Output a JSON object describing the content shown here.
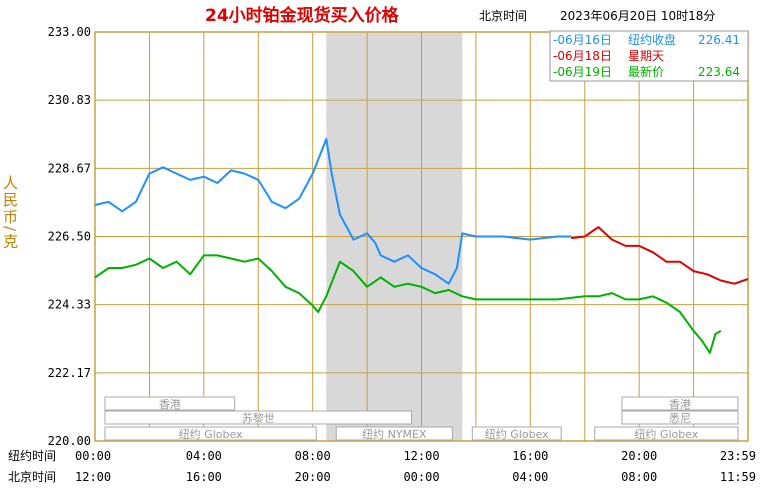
{
  "header": {
    "title": "24小时铂金现货买入价格",
    "timezone_label": "北京时间",
    "timestamp": "2023年06月20日 10时18分"
  },
  "colors": {
    "grid": "#c8a040",
    "shade": "#d8d8d8",
    "series": [
      "#1e90ff",
      "#e00000",
      "#00b000"
    ]
  },
  "chart_data": {
    "type": "line",
    "title": "24小时铂金现货买入价格",
    "ylabel": "人民币/克",
    "ylim": [
      220.0,
      233.0
    ],
    "y_ticks": [
      "233.00",
      "230.83",
      "228.67",
      "226.50",
      "224.33",
      "222.17",
      "220.00"
    ],
    "x_tick_rows": [
      {
        "label": "纽约时间",
        "ticks": [
          "00:00",
          "04:00",
          "08:00",
          "12:00",
          "16:00",
          "20:00",
          "23:59"
        ]
      },
      {
        "label": "北京时间",
        "ticks": [
          "12:00",
          "16:00",
          "20:00",
          "00:00",
          "04:00",
          "08:00",
          "11:59"
        ]
      }
    ],
    "x_ticks_hours": [
      0,
      4,
      8,
      12,
      16,
      20,
      24
    ],
    "shaded_hours": [
      8.5,
      13.5
    ],
    "markets": [
      {
        "name": "香港",
        "row": 0,
        "hours": [
          0.0,
          5.5
        ]
      },
      {
        "name": "香港",
        "row": 0,
        "hours": [
          19.0,
          24.0
        ]
      },
      {
        "name": "苏黎世",
        "row": 1,
        "hours": [
          0.0,
          12.0
        ]
      },
      {
        "name": "悉尼",
        "row": 1,
        "hours": [
          19.0,
          24.0
        ]
      },
      {
        "name": "纽约 Globex",
        "row": 2,
        "hours": [
          0.0,
          8.5
        ]
      },
      {
        "name": "纽约 NYMEX",
        "row": 2,
        "hours": [
          8.5,
          13.5
        ]
      },
      {
        "name": "纽约 Globex",
        "row": 2,
        "hours": [
          13.5,
          17.5
        ]
      },
      {
        "name": "纽约 Globex",
        "row": 2,
        "hours": [
          18.0,
          24.0
        ]
      }
    ],
    "legend": [
      {
        "date": "-06月16日",
        "label": "纽约收盘",
        "value": "226.41",
        "color": "#1e90ff"
      },
      {
        "date": "-06月18日",
        "label": "星期天",
        "value": "",
        "color": "#e00000"
      },
      {
        "date": "-06月19日",
        "label": "最新价",
        "value": "223.64",
        "color": "#00b000"
      }
    ],
    "series": [
      {
        "name": "06月16日",
        "color": "#1e90ff",
        "x": [
          0,
          0.5,
          1,
          1.5,
          2,
          2.5,
          3,
          3.5,
          4,
          4.5,
          5,
          5.5,
          6,
          6.5,
          7,
          7.5,
          8,
          8.5,
          8.7,
          9,
          9.5,
          10,
          10.3,
          10.5,
          11,
          11.5,
          12,
          12.5,
          13,
          13.3,
          13.5,
          14,
          15,
          16,
          17,
          17.5
        ],
        "y": [
          227.5,
          227.6,
          227.3,
          227.6,
          228.5,
          228.7,
          228.5,
          228.3,
          228.4,
          228.2,
          228.6,
          228.5,
          228.3,
          227.6,
          227.4,
          227.7,
          228.5,
          229.6,
          228.5,
          227.2,
          226.4,
          226.6,
          226.3,
          225.9,
          225.7,
          225.9,
          225.5,
          225.3,
          225.0,
          225.5,
          226.6,
          226.5,
          226.5,
          226.4,
          226.5,
          226.5
        ]
      },
      {
        "name": "06月18日",
        "color": "#e00000",
        "x": [
          17.5,
          18,
          18.5,
          19,
          19.5,
          20,
          20.5,
          21,
          21.5,
          22,
          22.5,
          23,
          23.5,
          24
        ],
        "y": [
          226.45,
          226.5,
          226.8,
          226.4,
          226.2,
          226.2,
          226.0,
          225.7,
          225.7,
          225.4,
          225.3,
          225.1,
          225.0,
          225.15
        ]
      },
      {
        "name": "06月19日",
        "color": "#00b000",
        "x": [
          0,
          0.5,
          1,
          1.5,
          2,
          2.5,
          3,
          3.5,
          4,
          4.5,
          5,
          5.5,
          6,
          6.5,
          7,
          7.5,
          8,
          8.2,
          8.5,
          9,
          9.5,
          10,
          10.5,
          11,
          11.5,
          12,
          12.5,
          13,
          13.5,
          14,
          15,
          16,
          17,
          18,
          18.5,
          19,
          19.5,
          20,
          20.5,
          21,
          21.5,
          22,
          22.3,
          22.6,
          22.8,
          23
        ],
        "y": [
          225.2,
          225.5,
          225.5,
          225.6,
          225.8,
          225.5,
          225.7,
          225.3,
          225.9,
          225.9,
          225.8,
          225.7,
          225.8,
          225.4,
          224.9,
          224.7,
          224.3,
          224.1,
          224.6,
          225.7,
          225.4,
          224.9,
          225.2,
          224.9,
          225.0,
          224.9,
          224.7,
          224.8,
          224.6,
          224.5,
          224.5,
          224.5,
          224.5,
          224.6,
          224.6,
          224.7,
          224.5,
          224.5,
          224.6,
          224.4,
          224.1,
          223.5,
          223.2,
          222.8,
          223.4,
          223.5
        ]
      }
    ]
  }
}
